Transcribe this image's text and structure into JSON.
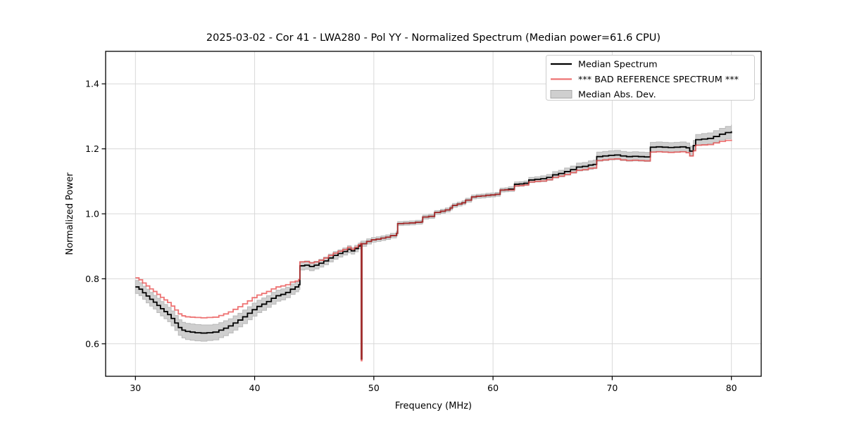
{
  "figure": {
    "background": "#ffffff"
  },
  "chart_data": {
    "type": "line",
    "title": "2025-03-02 - Cor 41 - LWA280 - Pol YY - Normalized Spectrum (Median power=61.6 CPU)",
    "xlabel": "Frequency (MHz)",
    "ylabel": "Normalized Power",
    "xlim": [
      27.5,
      82.5
    ],
    "ylim": [
      0.5,
      1.5
    ],
    "xticks": [
      30,
      40,
      50,
      60,
      70,
      80
    ],
    "yticks": [
      0.6,
      0.8,
      1.0,
      1.2,
      1.4
    ],
    "grid": true,
    "legend": {
      "position": "upper right",
      "entries": [
        {
          "label": "Median Spectrum",
          "type": "line",
          "color": "#000000"
        },
        {
          "label": "*** BAD REFERENCE SPECTRUM ***",
          "type": "line",
          "color": "#ee7474"
        },
        {
          "label": "Median Abs. Dev.",
          "type": "patch",
          "color": "#cfcfcf"
        }
      ]
    },
    "colors": {
      "median": "#000000",
      "bad_reference": "#e83e3e",
      "bad_reference_opacity": 0.72,
      "mad_band_fill": "#cfcfcf",
      "mad_band_edge": "#b9b9b9",
      "grid": "#d8d8d8",
      "spine": "#000000"
    },
    "x": [
      30.0,
      30.3,
      30.6,
      30.9,
      31.2,
      31.5,
      31.8,
      32.1,
      32.4,
      32.7,
      33.0,
      33.3,
      33.6,
      33.9,
      34.2,
      34.6,
      35.0,
      35.5,
      36.0,
      36.5,
      37.0,
      37.4,
      37.8,
      38.2,
      38.6,
      39.0,
      39.4,
      39.8,
      40.2,
      40.6,
      41.0,
      41.4,
      41.8,
      42.2,
      42.6,
      43.0,
      43.4,
      43.7,
      43.8,
      44.2,
      44.6,
      45.0,
      45.4,
      45.8,
      46.2,
      46.6,
      47.0,
      47.4,
      47.8,
      48.1,
      48.4,
      48.7,
      48.9,
      48.95,
      49.0,
      49.4,
      49.8,
      50.2,
      50.6,
      51.0,
      51.4,
      51.9,
      52.0,
      52.5,
      53.0,
      53.5,
      54.0,
      54.1,
      54.6,
      55.1,
      55.6,
      56.0,
      56.4,
      56.6,
      57.0,
      57.4,
      57.7,
      58.2,
      58.6,
      59.0,
      59.4,
      59.8,
      60.2,
      60.6,
      61.0,
      61.3,
      61.8,
      62.2,
      62.6,
      63.0,
      63.5,
      64.0,
      64.5,
      65.0,
      65.5,
      66.0,
      66.5,
      67.0,
      67.5,
      68.0,
      68.4,
      68.7,
      69.2,
      69.7,
      70.2,
      70.7,
      71.2,
      71.7,
      72.2,
      72.7,
      73.2,
      73.7,
      74.2,
      74.7,
      75.2,
      75.7,
      76.2,
      76.5,
      76.8,
      77.0,
      77.5,
      78.0,
      78.5,
      79.0,
      79.5,
      80.0
    ],
    "series": [
      {
        "name": "Median Spectrum",
        "values": [
          0.775,
          0.768,
          0.757,
          0.747,
          0.737,
          0.728,
          0.718,
          0.708,
          0.699,
          0.69,
          0.678,
          0.664,
          0.65,
          0.642,
          0.638,
          0.636,
          0.634,
          0.633,
          0.634,
          0.636,
          0.642,
          0.648,
          0.655,
          0.664,
          0.673,
          0.683,
          0.694,
          0.705,
          0.715,
          0.722,
          0.73,
          0.74,
          0.748,
          0.752,
          0.758,
          0.768,
          0.775,
          0.782,
          0.84,
          0.842,
          0.838,
          0.842,
          0.848,
          0.855,
          0.864,
          0.872,
          0.878,
          0.884,
          0.891,
          0.886,
          0.893,
          0.901,
          0.906,
          0.553,
          0.908,
          0.915,
          0.92,
          0.922,
          0.925,
          0.928,
          0.933,
          0.94,
          0.97,
          0.971,
          0.972,
          0.974,
          0.975,
          0.99,
          0.992,
          1.004,
          1.008,
          1.012,
          1.018,
          1.026,
          1.03,
          1.034,
          1.042,
          1.052,
          1.054,
          1.055,
          1.057,
          1.058,
          1.06,
          1.073,
          1.074,
          1.076,
          1.091,
          1.092,
          1.094,
          1.104,
          1.106,
          1.108,
          1.112,
          1.12,
          1.124,
          1.13,
          1.136,
          1.144,
          1.146,
          1.15,
          1.152,
          1.176,
          1.178,
          1.18,
          1.181,
          1.178,
          1.176,
          1.177,
          1.176,
          1.175,
          1.205,
          1.206,
          1.205,
          1.204,
          1.205,
          1.206,
          1.203,
          1.193,
          1.21,
          1.228,
          1.23,
          1.232,
          1.238,
          1.245,
          1.25,
          1.254
        ]
      },
      {
        "name": "*** BAD REFERENCE SPECTRUM ***",
        "values": [
          0.803,
          0.797,
          0.787,
          0.778,
          0.769,
          0.761,
          0.752,
          0.743,
          0.735,
          0.727,
          0.716,
          0.704,
          0.692,
          0.686,
          0.683,
          0.682,
          0.681,
          0.68,
          0.681,
          0.682,
          0.687,
          0.692,
          0.698,
          0.706,
          0.714,
          0.723,
          0.732,
          0.742,
          0.75,
          0.755,
          0.761,
          0.769,
          0.775,
          0.778,
          0.782,
          0.79,
          0.793,
          0.798,
          0.852,
          0.853,
          0.849,
          0.852,
          0.857,
          0.864,
          0.872,
          0.879,
          0.885,
          0.89,
          0.897,
          0.891,
          0.897,
          0.905,
          0.909,
          0.548,
          0.908,
          0.915,
          0.92,
          0.922,
          0.925,
          0.928,
          0.933,
          0.94,
          0.97,
          0.971,
          0.972,
          0.974,
          0.975,
          0.99,
          0.992,
          1.004,
          1.008,
          1.012,
          1.018,
          1.026,
          1.03,
          1.034,
          1.042,
          1.052,
          1.054,
          1.055,
          1.057,
          1.058,
          1.06,
          1.073,
          1.074,
          1.073,
          1.086,
          1.087,
          1.089,
          1.098,
          1.1,
          1.101,
          1.105,
          1.112,
          1.116,
          1.121,
          1.127,
          1.134,
          1.136,
          1.14,
          1.141,
          1.164,
          1.166,
          1.168,
          1.169,
          1.166,
          1.164,
          1.165,
          1.164,
          1.163,
          1.19,
          1.191,
          1.19,
          1.189,
          1.19,
          1.191,
          1.188,
          1.178,
          1.194,
          1.211,
          1.212,
          1.213,
          1.218,
          1.223,
          1.226,
          1.228
        ]
      }
    ],
    "band": {
      "name": "Median Abs. Dev.",
      "upper": [
        0.795,
        0.788,
        0.777,
        0.768,
        0.758,
        0.749,
        0.74,
        0.73,
        0.721,
        0.712,
        0.701,
        0.687,
        0.674,
        0.666,
        0.663,
        0.661,
        0.659,
        0.658,
        0.658,
        0.66,
        0.665,
        0.671,
        0.677,
        0.686,
        0.694,
        0.704,
        0.714,
        0.725,
        0.734,
        0.741,
        0.748,
        0.758,
        0.765,
        0.769,
        0.774,
        0.784,
        0.79,
        0.797,
        0.853,
        0.855,
        0.851,
        0.854,
        0.86,
        0.867,
        0.876,
        0.884,
        0.889,
        0.895,
        0.902,
        0.896,
        0.903,
        0.91,
        0.915,
        0.916,
        0.916,
        0.923,
        0.927,
        0.929,
        0.932,
        0.935,
        0.94,
        0.947,
        0.976,
        0.977,
        0.978,
        0.98,
        0.981,
        0.996,
        0.998,
        1.01,
        1.014,
        1.018,
        1.024,
        1.032,
        1.036,
        1.04,
        1.048,
        1.058,
        1.06,
        1.061,
        1.063,
        1.064,
        1.066,
        1.079,
        1.08,
        1.083,
        1.098,
        1.099,
        1.101,
        1.112,
        1.114,
        1.117,
        1.121,
        1.13,
        1.134,
        1.141,
        1.147,
        1.156,
        1.158,
        1.163,
        1.165,
        1.19,
        1.192,
        1.194,
        1.195,
        1.192,
        1.19,
        1.191,
        1.19,
        1.189,
        1.22,
        1.221,
        1.22,
        1.219,
        1.22,
        1.221,
        1.218,
        1.208,
        1.226,
        1.244,
        1.247,
        1.249,
        1.256,
        1.263,
        1.269,
        1.274
      ],
      "lower": [
        0.755,
        0.748,
        0.737,
        0.726,
        0.716,
        0.707,
        0.696,
        0.686,
        0.677,
        0.668,
        0.655,
        0.641,
        0.626,
        0.618,
        0.613,
        0.611,
        0.609,
        0.608,
        0.61,
        0.612,
        0.619,
        0.625,
        0.633,
        0.642,
        0.652,
        0.662,
        0.674,
        0.685,
        0.696,
        0.703,
        0.712,
        0.722,
        0.731,
        0.735,
        0.742,
        0.752,
        0.76,
        0.767,
        0.827,
        0.829,
        0.825,
        0.83,
        0.836,
        0.843,
        0.852,
        0.86,
        0.867,
        0.873,
        0.88,
        0.876,
        0.883,
        0.892,
        0.897,
        0.898,
        0.9,
        0.907,
        0.913,
        0.915,
        0.918,
        0.921,
        0.926,
        0.933,
        0.964,
        0.965,
        0.966,
        0.968,
        0.969,
        0.984,
        0.986,
        0.998,
        1.002,
        1.006,
        1.012,
        1.02,
        1.024,
        1.028,
        1.036,
        1.046,
        1.048,
        1.049,
        1.051,
        1.052,
        1.054,
        1.067,
        1.068,
        1.069,
        1.084,
        1.085,
        1.087,
        1.096,
        1.098,
        1.099,
        1.103,
        1.11,
        1.114,
        1.119,
        1.125,
        1.132,
        1.134,
        1.137,
        1.139,
        1.162,
        1.164,
        1.166,
        1.167,
        1.164,
        1.162,
        1.163,
        1.162,
        1.161,
        1.19,
        1.191,
        1.19,
        1.189,
        1.19,
        1.191,
        1.188,
        1.178,
        1.194,
        1.212,
        1.213,
        1.215,
        1.22,
        1.227,
        1.231,
        1.234
      ]
    }
  }
}
